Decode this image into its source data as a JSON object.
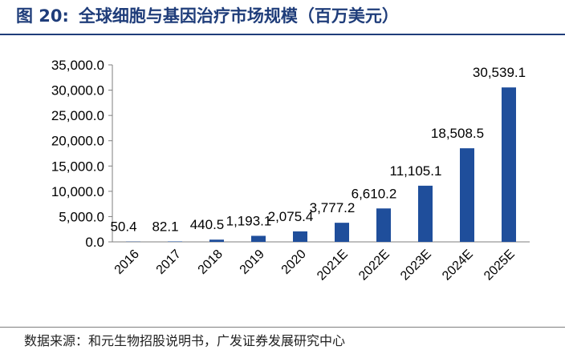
{
  "figure": {
    "number": "图 20:",
    "title": "全球细胞与基因治疗市场规模（百万美元）"
  },
  "source": "数据来源：和元生物招股说明书，广发证券发展研究中心",
  "chart_data": {
    "type": "bar",
    "title": "全球细胞与基因治疗市场规模（百万美元）",
    "categories": [
      "2016",
      "2017",
      "2018",
      "2019",
      "2020",
      "2021E",
      "2022E",
      "2023E",
      "2024E",
      "2025E"
    ],
    "values": [
      50.4,
      82.1,
      440.5,
      1193.1,
      2075.4,
      3777.2,
      6610.2,
      11105.1,
      18508.5,
      30539.1
    ],
    "value_labels": [
      "50.4",
      "82.1",
      "440.5",
      "1,193.1",
      "2,075.4",
      "3,777.2",
      "6,610.2",
      "11,105.1",
      "18,508.5",
      "30,539.1"
    ],
    "ylim": [
      0,
      35000
    ],
    "yticks": [
      "0.0",
      "5,000.0",
      "10,000.0",
      "15,000.0",
      "20,000.0",
      "25,000.0",
      "30,000.0",
      "35,000.0"
    ],
    "xlabel": "",
    "ylabel": "",
    "bar_color": "#1f4e9b",
    "grid": false,
    "legend": "none"
  }
}
